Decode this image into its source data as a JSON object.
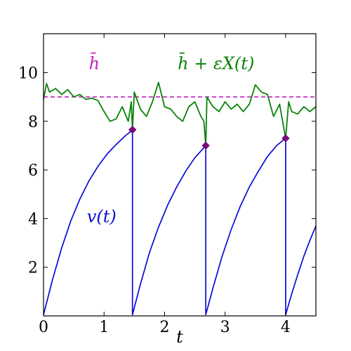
{
  "chart_data": {
    "type": "line",
    "title": "",
    "xlabel": "t",
    "ylabel": "",
    "xlim": [
      0,
      4.5
    ],
    "ylim": [
      0,
      11.6
    ],
    "x_ticks": [
      0,
      1,
      2,
      3,
      4
    ],
    "y_ticks": [
      2,
      4,
      6,
      8,
      10
    ],
    "x_tick_labels": [
      "0",
      "1",
      "2",
      "3",
      "4"
    ],
    "y_tick_labels": [
      "2",
      "4",
      "6",
      "8",
      "10"
    ],
    "grid": false,
    "threshold": {
      "label": "h̄",
      "y": 9.0,
      "color": "#c020c0",
      "style": "dashed"
    },
    "series": [
      {
        "name": "v(t)",
        "color": "#0a0ad8",
        "x": [
          0,
          0.15,
          0.3,
          0.45,
          0.6,
          0.75,
          0.9,
          1.05,
          1.2,
          1.35,
          1.47,
          1.47,
          1.6,
          1.75,
          1.9,
          2.05,
          2.2,
          2.35,
          2.5,
          2.68,
          2.68,
          2.8,
          2.95,
          3.1,
          3.25,
          3.4,
          3.55,
          3.7,
          3.85,
          4.0,
          4.0,
          4.1,
          4.2,
          4.3,
          4.4,
          4.5
        ],
        "y": [
          0.05,
          1.5,
          2.8,
          3.9,
          4.8,
          5.55,
          6.15,
          6.65,
          7.05,
          7.4,
          7.65,
          0.05,
          1.3,
          2.6,
          3.65,
          4.55,
          5.3,
          5.95,
          6.5,
          7.0,
          0.05,
          1.15,
          2.45,
          3.55,
          4.5,
          5.3,
          5.95,
          6.55,
          7.0,
          7.3,
          0.05,
          0.9,
          1.7,
          2.45,
          3.1,
          3.7
        ]
      },
      {
        "name": "h̄ + εX(t)",
        "color": "#0a820a",
        "x": [
          0,
          0.05,
          0.1,
          0.2,
          0.3,
          0.4,
          0.5,
          0.6,
          0.7,
          0.8,
          0.9,
          1.0,
          1.1,
          1.2,
          1.3,
          1.4,
          1.45,
          1.47,
          1.5,
          1.6,
          1.7,
          1.8,
          1.9,
          2.0,
          2.1,
          2.2,
          2.3,
          2.4,
          2.5,
          2.6,
          2.65,
          2.68,
          2.7,
          2.8,
          2.9,
          3.0,
          3.1,
          3.2,
          3.3,
          3.4,
          3.5,
          3.6,
          3.7,
          3.8,
          3.9,
          3.95,
          4.0,
          4.05,
          4.1,
          4.2,
          4.3,
          4.4,
          4.5
        ],
        "y": [
          8.9,
          9.55,
          9.2,
          9.35,
          9.1,
          9.3,
          9.0,
          9.1,
          8.9,
          8.95,
          8.85,
          8.4,
          8.0,
          8.1,
          8.6,
          8.0,
          8.8,
          7.65,
          9.2,
          8.5,
          8.2,
          8.8,
          9.6,
          8.6,
          8.5,
          8.2,
          8.0,
          8.6,
          8.8,
          8.2,
          8.0,
          7.0,
          9.0,
          8.6,
          8.4,
          8.8,
          8.5,
          8.7,
          8.4,
          8.7,
          9.5,
          9.2,
          9.1,
          8.2,
          8.7,
          8.0,
          7.3,
          8.8,
          8.4,
          8.3,
          8.6,
          8.4,
          8.6
        ]
      }
    ],
    "markers": {
      "shape": "diamond",
      "color": "#7a0a7a",
      "x": [
        1.47,
        2.68,
        4.0
      ],
      "y": [
        7.65,
        7.0,
        7.3
      ]
    }
  }
}
